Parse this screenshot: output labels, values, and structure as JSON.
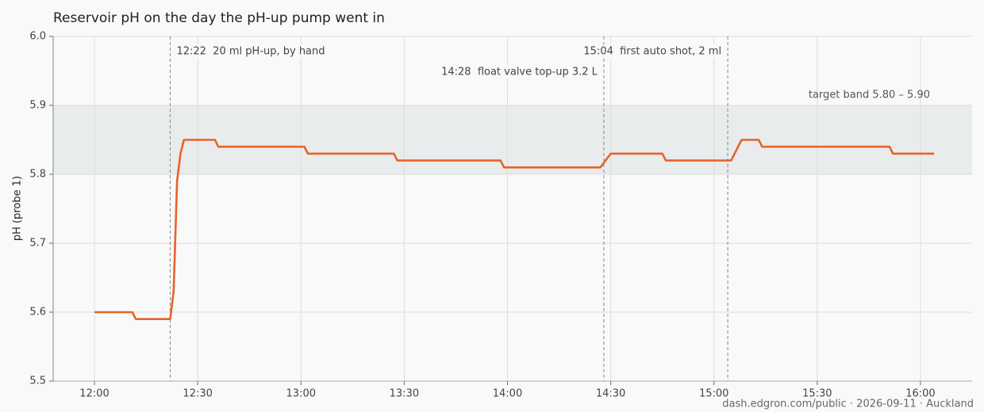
{
  "chart_data": {
    "type": "line",
    "title": "Reservoir pH on the day the pH-up pump went in",
    "y_label": "pH (probe 1)",
    "footer": "dash.edgron.com/public · 2026-09-11 · Auckland",
    "x": [
      "12:00",
      "12:11",
      "12:12",
      "12:22",
      "12:23",
      "12:24",
      "12:25",
      "12:26",
      "12:35",
      "12:36",
      "13:01",
      "13:02",
      "13:27",
      "13:28",
      "13:58",
      "13:59",
      "14:27",
      "14:30",
      "14:45",
      "14:46",
      "15:05",
      "15:08",
      "15:13",
      "15:14",
      "15:51",
      "15:52",
      "16:04"
    ],
    "values": [
      5.6,
      5.6,
      5.59,
      5.59,
      5.63,
      5.79,
      5.83,
      5.85,
      5.85,
      5.84,
      5.84,
      5.83,
      5.83,
      5.82,
      5.82,
      5.81,
      5.81,
      5.83,
      5.83,
      5.82,
      5.82,
      5.85,
      5.85,
      5.84,
      5.84,
      5.83,
      5.83
    ],
    "color": "#e8622a",
    "xlim": [
      "11:48",
      "16:15"
    ],
    "xticks": [
      "12:00",
      "12:30",
      "13:00",
      "13:30",
      "14:00",
      "14:30",
      "15:00",
      "15:30",
      "16:00"
    ],
    "ylim": [
      5.5,
      6
    ],
    "yticks": [
      5.5,
      5.6,
      5.7,
      5.8,
      5.9,
      {
        "value": 6,
        "label": "6.0"
      }
    ],
    "grid": true,
    "band": {
      "range": [
        5.8,
        5.9
      ],
      "label": "target band 5.80 – 5.90",
      "color": "#e9ecec"
    },
    "annotations": [
      {
        "x": "12:22",
        "text": "12:22  20 ml pH-up, by hand"
      },
      {
        "x": "14:28",
        "text": "14:28  float valve top-up 3.2 L"
      },
      {
        "x": "15:04",
        "text": "15:04  first auto shot, 2 ml"
      }
    ]
  }
}
